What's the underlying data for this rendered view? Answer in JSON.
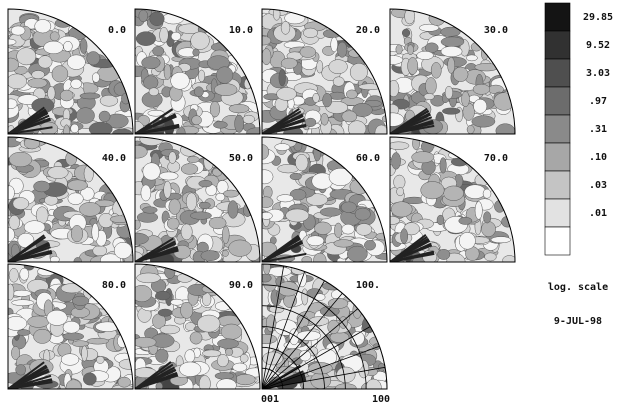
{
  "panels": [
    {
      "label": "0.0"
    },
    {
      "label": "10.0"
    },
    {
      "label": "20.0"
    },
    {
      "label": "30.0"
    },
    {
      "label": "40.0"
    },
    {
      "label": "50.0"
    },
    {
      "label": "60.0"
    },
    {
      "label": "70.0"
    },
    {
      "label": "80.0"
    },
    {
      "label": "90.0"
    },
    {
      "label": "100."
    }
  ],
  "legend": {
    "levels": [
      "29.85",
      "9.52",
      "3.03",
      ".97",
      ".31",
      ".10",
      ".03",
      ".01"
    ],
    "scale_note": "log. scale"
  },
  "date": "9-JUL-98",
  "axis_labels": {
    "origin": "001",
    "end": "100"
  }
}
